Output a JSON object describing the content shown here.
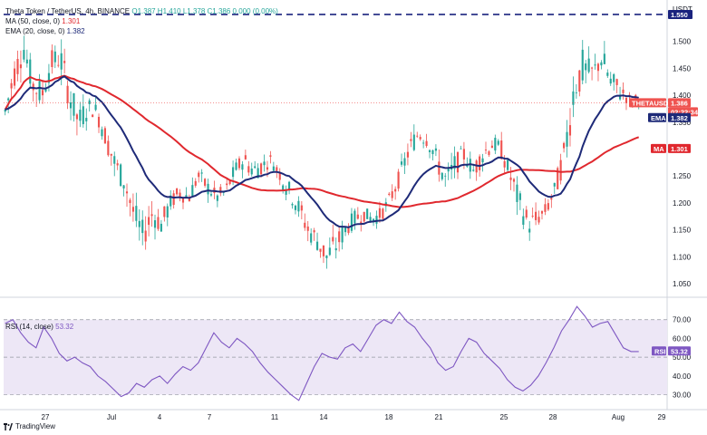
{
  "legend": {
    "line1_name": "Theta Token / TetherUS, 4h, BINANCE",
    "line1_ohlc": "O1.387 H1.410 L1.378 C1.386 0.000 (0.00%)",
    "line2_name": "MA (50, close, 0)",
    "line2_value": "1.301",
    "line3_name": "EMA (20, close, 0)",
    "line3_value": "1.382"
  },
  "price_axis": {
    "currency": "USDT",
    "ticks": [
      "1.500",
      "1.450",
      "1.400",
      "1.350",
      "1.300",
      "1.250",
      "1.200",
      "1.150",
      "1.100",
      "1.050"
    ],
    "top_tag": "1.550",
    "symbol_tag": "THETAUSDT",
    "symbol_price": "1.386",
    "countdown": "02:22:34",
    "ema_tag": "EMA",
    "ema_value": "1.382",
    "ma_tag": "MA",
    "ma_value": "1.301"
  },
  "rsi": {
    "legend_name": "RSI (14, close)",
    "legend_value": "53.32",
    "ticks": [
      "70.00",
      "60.00",
      "50.00",
      "40.00",
      "30.00"
    ],
    "tag": "RSI",
    "tag_value": "53.32"
  },
  "time_axis": {
    "labels": [
      "27",
      "Jul",
      "4",
      "7",
      "11",
      "14",
      "18",
      "21",
      "25",
      "28",
      "Aug",
      "29"
    ]
  },
  "footer": {
    "brand": "TradingView"
  },
  "colors": {
    "up": "#26a69a",
    "down": "#ef5350",
    "ema": "#1e2a78",
    "ma": "#e0282e",
    "rsi_line": "#7e57c2",
    "rsi_band": "#ede7f6",
    "dash_line": "#1a237e"
  },
  "chart_data": [
    {
      "type": "candlestick",
      "title": "Theta Token / TetherUS, 4h, BINANCE",
      "ylim": [
        1.03,
        1.56
      ],
      "ylabel": "USDT",
      "reference_line": 1.55,
      "ohlc_anchors": [
        [
          1.36,
          1.41,
          1.33,
          1.37
        ],
        [
          1.37,
          1.46,
          1.36,
          1.44
        ],
        [
          1.44,
          1.51,
          1.43,
          1.49
        ],
        [
          1.49,
          1.5,
          1.4,
          1.42
        ],
        [
          1.42,
          1.43,
          1.38,
          1.4
        ],
        [
          1.4,
          1.48,
          1.39,
          1.46
        ],
        [
          1.46,
          1.52,
          1.44,
          1.47
        ],
        [
          1.47,
          1.49,
          1.38,
          1.4
        ],
        [
          1.4,
          1.42,
          1.33,
          1.35
        ],
        [
          1.35,
          1.39,
          1.33,
          1.38
        ],
        [
          1.38,
          1.4,
          1.35,
          1.37
        ],
        [
          1.37,
          1.38,
          1.3,
          1.32
        ],
        [
          1.32,
          1.34,
          1.25,
          1.27
        ],
        [
          1.27,
          1.3,
          1.22,
          1.24
        ],
        [
          1.24,
          1.26,
          1.16,
          1.18
        ],
        [
          1.18,
          1.22,
          1.12,
          1.14
        ],
        [
          1.14,
          1.2,
          1.13,
          1.18
        ],
        [
          1.18,
          1.22,
          1.14,
          1.16
        ],
        [
          1.16,
          1.21,
          1.15,
          1.2
        ],
        [
          1.2,
          1.24,
          1.18,
          1.22
        ],
        [
          1.22,
          1.25,
          1.19,
          1.21
        ],
        [
          1.21,
          1.26,
          1.2,
          1.25
        ],
        [
          1.25,
          1.28,
          1.22,
          1.23
        ],
        [
          1.23,
          1.25,
          1.19,
          1.21
        ],
        [
          1.21,
          1.24,
          1.18,
          1.22
        ],
        [
          1.22,
          1.27,
          1.21,
          1.26
        ],
        [
          1.26,
          1.3,
          1.24,
          1.28
        ],
        [
          1.28,
          1.32,
          1.25,
          1.26
        ],
        [
          1.26,
          1.28,
          1.24,
          1.27
        ],
        [
          1.27,
          1.3,
          1.25,
          1.28
        ],
        [
          1.28,
          1.29,
          1.24,
          1.25
        ],
        [
          1.25,
          1.27,
          1.2,
          1.22
        ],
        [
          1.22,
          1.24,
          1.17,
          1.19
        ],
        [
          1.19,
          1.21,
          1.13,
          1.15
        ],
        [
          1.15,
          1.18,
          1.11,
          1.13
        ],
        [
          1.13,
          1.16,
          1.07,
          1.1
        ],
        [
          1.1,
          1.14,
          1.06,
          1.12
        ],
        [
          1.12,
          1.16,
          1.1,
          1.15
        ],
        [
          1.15,
          1.19,
          1.13,
          1.17
        ],
        [
          1.17,
          1.2,
          1.15,
          1.18
        ],
        [
          1.18,
          1.21,
          1.16,
          1.17
        ],
        [
          1.17,
          1.19,
          1.15,
          1.18
        ],
        [
          1.18,
          1.22,
          1.17,
          1.21
        ],
        [
          1.21,
          1.26,
          1.2,
          1.25
        ],
        [
          1.25,
          1.31,
          1.24,
          1.3
        ],
        [
          1.3,
          1.35,
          1.28,
          1.33
        ],
        [
          1.33,
          1.36,
          1.3,
          1.32
        ],
        [
          1.32,
          1.34,
          1.27,
          1.28
        ],
        [
          1.28,
          1.31,
          1.22,
          1.24
        ],
        [
          1.24,
          1.29,
          1.22,
          1.27
        ],
        [
          1.27,
          1.3,
          1.24,
          1.29
        ],
        [
          1.29,
          1.31,
          1.25,
          1.26
        ],
        [
          1.26,
          1.3,
          1.23,
          1.29
        ],
        [
          1.29,
          1.33,
          1.27,
          1.31
        ],
        [
          1.31,
          1.34,
          1.28,
          1.3
        ],
        [
          1.3,
          1.31,
          1.24,
          1.25
        ],
        [
          1.25,
          1.27,
          1.18,
          1.2
        ],
        [
          1.2,
          1.22,
          1.14,
          1.16
        ],
        [
          1.16,
          1.19,
          1.14,
          1.17
        ],
        [
          1.17,
          1.2,
          1.16,
          1.19
        ],
        [
          1.19,
          1.24,
          1.18,
          1.23
        ],
        [
          1.23,
          1.31,
          1.22,
          1.3
        ],
        [
          1.3,
          1.44,
          1.29,
          1.42
        ],
        [
          1.42,
          1.47,
          1.38,
          1.45
        ],
        [
          1.45,
          1.48,
          1.41,
          1.44
        ],
        [
          1.44,
          1.5,
          1.42,
          1.47
        ],
        [
          1.47,
          1.5,
          1.41,
          1.42
        ],
        [
          1.42,
          1.44,
          1.39,
          1.41
        ],
        [
          1.41,
          1.42,
          1.37,
          1.39
        ],
        [
          1.39,
          1.41,
          1.37,
          1.39
        ]
      ],
      "last_close": 1.386,
      "series": [
        {
          "name": "MA (50, close, 0)",
          "last_value": 1.301
        },
        {
          "name": "EMA (20, close, 0)",
          "last_value": 1.382
        }
      ]
    },
    {
      "type": "line",
      "title": "RSI (14, close)",
      "ylim": [
        24,
        80
      ],
      "band": [
        30,
        70
      ],
      "values": [
        68,
        70,
        63,
        58,
        55,
        66,
        60,
        52,
        48,
        50,
        47,
        45,
        40,
        37,
        33,
        29,
        31,
        36,
        34,
        38,
        40,
        36,
        41,
        45,
        43,
        47,
        55,
        63,
        58,
        55,
        60,
        57,
        53,
        47,
        42,
        38,
        34,
        30,
        27,
        36,
        45,
        52,
        50,
        49,
        55,
        57,
        53,
        60,
        67,
        70,
        68,
        74,
        69,
        66,
        60,
        55,
        47,
        43,
        45,
        53,
        60,
        58,
        52,
        48,
        44,
        38,
        34,
        32,
        35,
        40,
        47,
        55,
        64,
        70,
        77,
        72,
        66,
        68,
        69,
        62,
        55,
        53,
        53
      ],
      "last_value": 53.32
    }
  ]
}
